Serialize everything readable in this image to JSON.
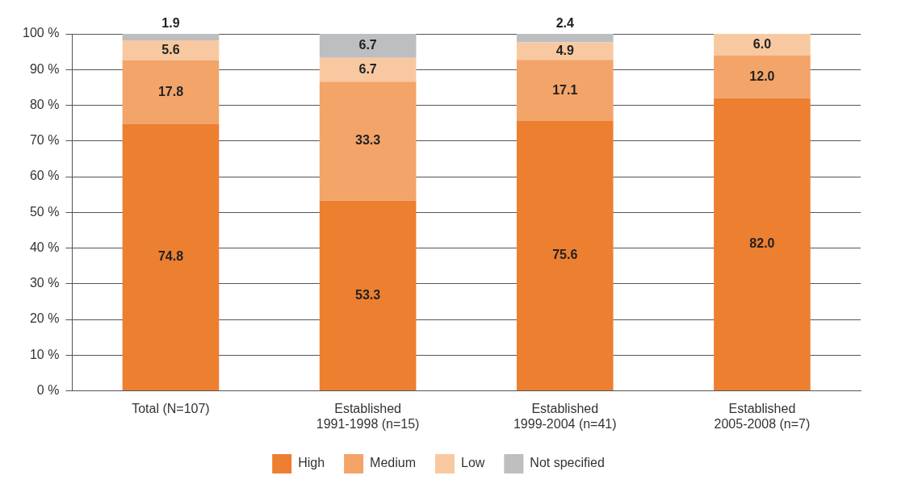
{
  "chart_data": {
    "type": "bar",
    "stacked": true,
    "categories": [
      "Total (N=107)",
      "Established\n1991-1998 (n=15)",
      "Established\n1999-2004 (n=41)",
      "Established\n2005-2008 (n=7)"
    ],
    "series": [
      {
        "name": "High",
        "color": "#ed7f31",
        "values": [
          74.8,
          53.3,
          75.6,
          82.0
        ],
        "value_labels": [
          "74.8",
          "53.3",
          "75.6",
          "82.0"
        ]
      },
      {
        "name": "Medium",
        "color": "#f3a469",
        "values": [
          17.8,
          33.3,
          17.1,
          12.0
        ],
        "value_labels": [
          "17.8",
          "33.3",
          "17.1",
          "12.0"
        ]
      },
      {
        "name": "Low",
        "color": "#f8c9a0",
        "values": [
          5.6,
          6.7,
          4.9,
          6.0
        ],
        "value_labels": [
          "5.6",
          "6.7",
          "4.9",
          "6.0"
        ]
      },
      {
        "name": "Not specified",
        "color": "#bcbec0",
        "values": [
          1.9,
          6.7,
          2.4,
          null
        ],
        "value_labels": [
          "1.9",
          "6.7",
          "2.4",
          null
        ]
      }
    ],
    "ylim": [
      0,
      100
    ],
    "yticks": [
      {
        "value": 0,
        "label": "0 %"
      },
      {
        "value": 10,
        "label": "10 %"
      },
      {
        "value": 20,
        "label": "20 %"
      },
      {
        "value": 30,
        "label": "30 %"
      },
      {
        "value": 40,
        "label": "40 %"
      },
      {
        "value": 50,
        "label": "50 %"
      },
      {
        "value": 60,
        "label": "60 %"
      },
      {
        "value": 70,
        "label": "70 %"
      },
      {
        "value": 80,
        "label": "80 %"
      },
      {
        "value": 90,
        "label": "90 %"
      },
      {
        "value": 100,
        "label": "100 %"
      }
    ],
    "grid": "y",
    "legend": "bottom"
  }
}
